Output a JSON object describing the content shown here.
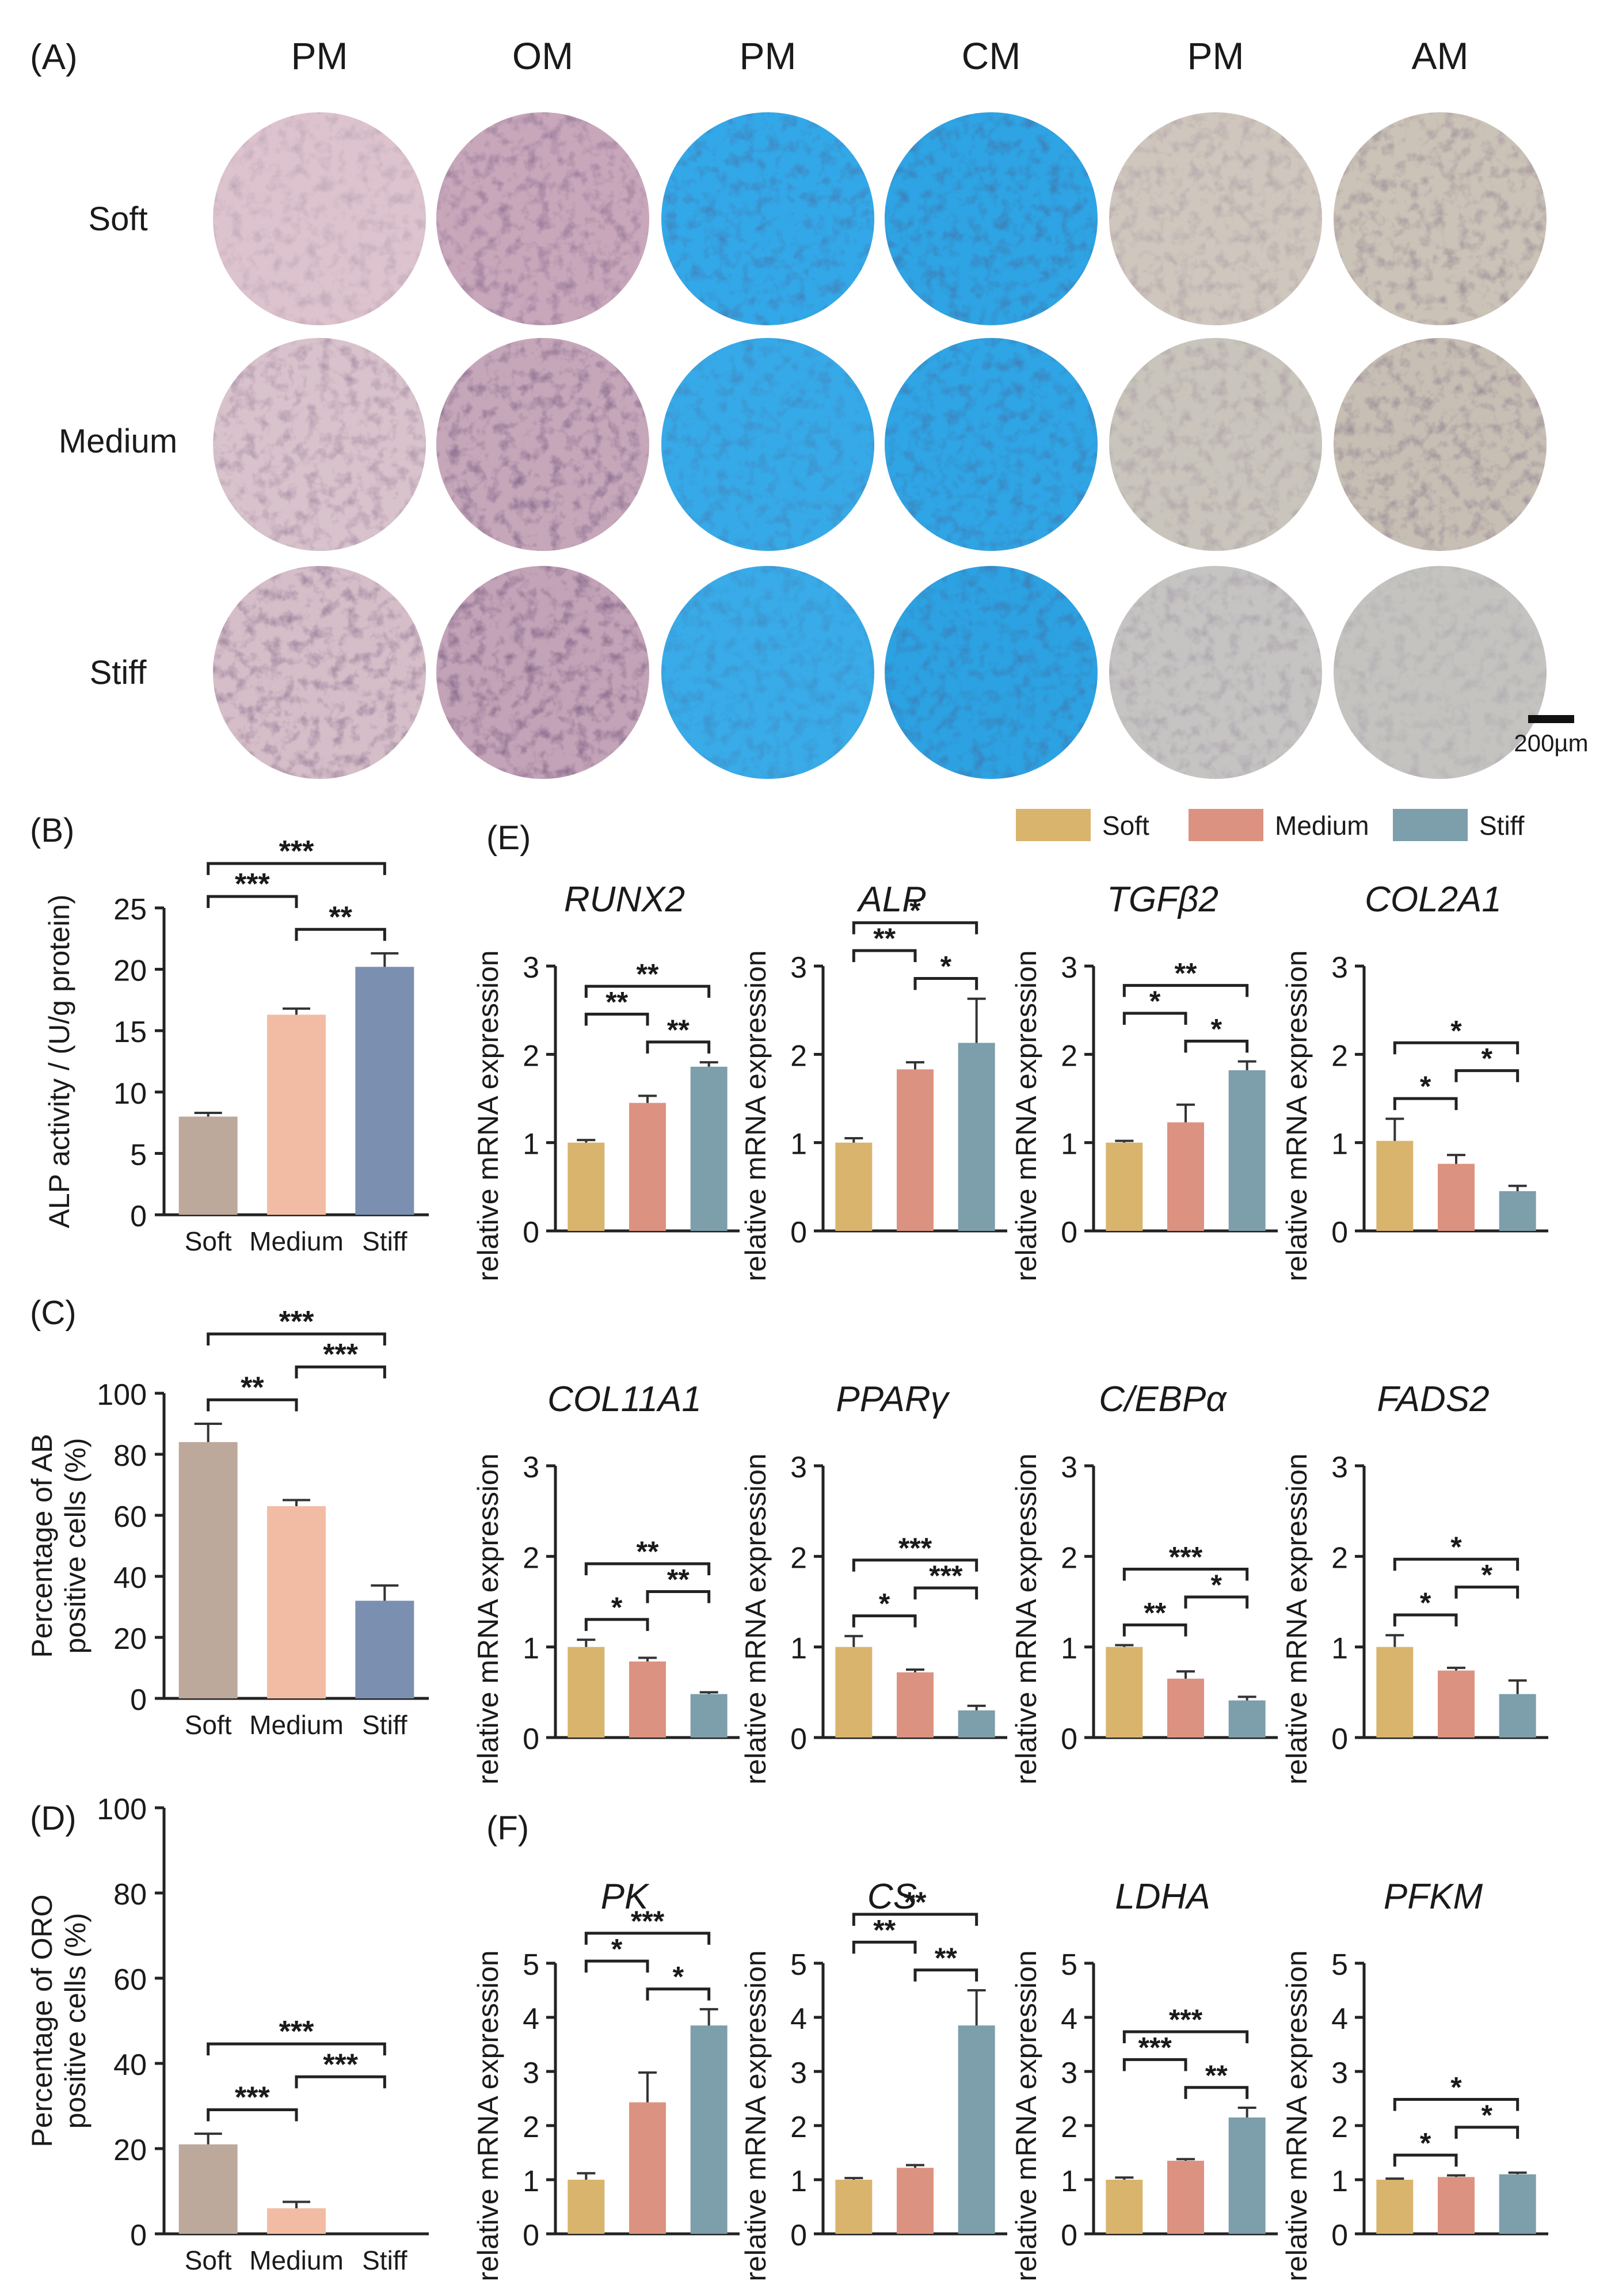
{
  "colors": {
    "soft": "#d9b46d",
    "medium": "#dc9280",
    "stiff": "#7d9eab",
    "soft_b": "#bda89c",
    "medium_b": "#f2bca4",
    "stiff_b": "#7b8fb0",
    "pm_purple": "#d9bcc8",
    "om_purple": "#c9a6bb",
    "alcian": "#35a9e6",
    "oro": "#c7c4bd"
  },
  "panel_a": {
    "label": "(A)",
    "columns": [
      "PM",
      "OM",
      "PM",
      "CM",
      "PM",
      "AM"
    ],
    "rows": [
      "Soft",
      "Medium",
      "Stiff"
    ],
    "scale_bar": "200µm"
  },
  "chart_data": [
    {
      "panel": "(B)",
      "type": "bar",
      "ylabel": "ALP activity / (U/g protein)",
      "categories": [
        "Soft",
        "Medium",
        "Stiff"
      ],
      "values": [
        8.0,
        16.3,
        20.2
      ],
      "errors": [
        0.3,
        0.5,
        1.1
      ],
      "ylim": [
        0,
        25
      ],
      "yticks": [
        "0",
        "5",
        "10",
        "15",
        "20",
        "25"
      ],
      "sig": [
        {
          "a": 0,
          "b": 2,
          "label": "***"
        },
        {
          "a": 1,
          "b": 2,
          "label": "**"
        },
        {
          "a": 0,
          "b": 1,
          "label": "***"
        }
      ]
    },
    {
      "panel": "(C)",
      "type": "bar",
      "ylabel": [
        "Percentage of AB",
        "positive cells (%)"
      ],
      "categories": [
        "Soft",
        "Medium",
        "Stiff"
      ],
      "values": [
        84,
        63,
        32
      ],
      "errors": [
        6,
        2,
        5
      ],
      "ylim": [
        0,
        100
      ],
      "yticks": [
        "0",
        "20",
        "40",
        "60",
        "80",
        "100"
      ],
      "sig": [
        {
          "a": 0,
          "b": 2,
          "label": "***"
        },
        {
          "a": 0,
          "b": 1,
          "label": "**"
        },
        {
          "a": 1,
          "b": 2,
          "label": "***"
        }
      ]
    },
    {
      "panel": "(D)",
      "type": "bar",
      "ylabel": [
        "Percentage of ORO",
        "positive cells (%)"
      ],
      "categories": [
        "Soft",
        "Medium",
        "Stiff"
      ],
      "values": [
        21,
        6,
        0
      ],
      "errors": [
        2.5,
        1.5,
        0
      ],
      "ylim": [
        0,
        100
      ],
      "yticks": [
        "0",
        "20",
        "40",
        "60",
        "80",
        "100"
      ],
      "sig": [
        {
          "a": 0,
          "b": 2,
          "label": "***"
        },
        {
          "a": 0,
          "b": 1,
          "label": "***"
        },
        {
          "a": 1,
          "b": 2,
          "label": "***"
        }
      ]
    },
    {
      "panel": "(E)",
      "type": "bar",
      "legend": [
        "Soft",
        "Medium",
        "Stiff"
      ],
      "ylabel": "relative mRNA expression",
      "genes": [
        {
          "name": "RUNX2",
          "values": [
            1.0,
            1.45,
            1.86
          ],
          "errors": [
            0.03,
            0.08,
            0.05
          ],
          "ylim": [
            0,
            3
          ],
          "sig": [
            {
              "a": 0,
              "b": 2,
              "label": "**"
            },
            {
              "a": 1,
              "b": 2,
              "label": "**"
            },
            {
              "a": 0,
              "b": 1,
              "label": "**"
            }
          ]
        },
        {
          "name": "ALP",
          "values": [
            1.0,
            1.83,
            2.13
          ],
          "errors": [
            0.05,
            0.08,
            0.5
          ],
          "ylim": [
            0,
            3
          ],
          "sig": [
            {
              "a": 0,
              "b": 2,
              "label": "*"
            },
            {
              "a": 1,
              "b": 2,
              "label": "*"
            },
            {
              "a": 0,
              "b": 1,
              "label": "**"
            }
          ]
        },
        {
          "name": "TGFβ2",
          "values": [
            1.0,
            1.23,
            1.82
          ],
          "errors": [
            0.02,
            0.2,
            0.1
          ],
          "ylim": [
            0,
            3
          ],
          "sig": [
            {
              "a": 0,
              "b": 2,
              "label": "**"
            },
            {
              "a": 1,
              "b": 2,
              "label": "*"
            },
            {
              "a": 0,
              "b": 1,
              "label": "*"
            }
          ]
        },
        {
          "name": "COL2A1",
          "values": [
            1.02,
            0.76,
            0.45
          ],
          "errors": [
            0.25,
            0.1,
            0.06
          ],
          "ylim": [
            0,
            3
          ],
          "sig": [
            {
              "a": 0,
              "b": 2,
              "label": "*"
            },
            {
              "a": 0,
              "b": 1,
              "label": "*"
            },
            {
              "a": 1,
              "b": 2,
              "label": "*"
            }
          ]
        },
        {
          "name": "COL11A1",
          "values": [
            1.0,
            0.84,
            0.48
          ],
          "errors": [
            0.08,
            0.04,
            0.02
          ],
          "ylim": [
            0,
            3
          ],
          "sig": [
            {
              "a": 0,
              "b": 2,
              "label": "**"
            },
            {
              "a": 0,
              "b": 1,
              "label": "*"
            },
            {
              "a": 1,
              "b": 2,
              "label": "**"
            }
          ]
        },
        {
          "name": "PPARγ",
          "values": [
            1.0,
            0.72,
            0.3
          ],
          "errors": [
            0.12,
            0.03,
            0.05
          ],
          "ylim": [
            0,
            3
          ],
          "sig": [
            {
              "a": 0,
              "b": 2,
              "label": "***"
            },
            {
              "a": 0,
              "b": 1,
              "label": "*"
            },
            {
              "a": 1,
              "b": 2,
              "label": "***"
            }
          ]
        },
        {
          "name": "C/EBPα",
          "values": [
            1.0,
            0.65,
            0.41
          ],
          "errors": [
            0.02,
            0.08,
            0.04
          ],
          "ylim": [
            0,
            3
          ],
          "sig": [
            {
              "a": 0,
              "b": 2,
              "label": "***"
            },
            {
              "a": 0,
              "b": 1,
              "label": "**"
            },
            {
              "a": 1,
              "b": 2,
              "label": "*"
            }
          ]
        },
        {
          "name": "FADS2",
          "values": [
            1.0,
            0.74,
            0.48
          ],
          "errors": [
            0.13,
            0.03,
            0.15
          ],
          "ylim": [
            0,
            3
          ],
          "sig": [
            {
              "a": 0,
              "b": 2,
              "label": "*"
            },
            {
              "a": 0,
              "b": 1,
              "label": "*"
            },
            {
              "a": 1,
              "b": 2,
              "label": "*"
            }
          ]
        }
      ]
    },
    {
      "panel": "(F)",
      "type": "bar",
      "ylabel": "relative mRNA expression",
      "genes": [
        {
          "name": "PK",
          "values": [
            1.0,
            2.43,
            3.85
          ],
          "errors": [
            0.12,
            0.55,
            0.3
          ],
          "ylim": [
            0,
            5
          ],
          "sig": [
            {
              "a": 0,
              "b": 2,
              "label": "***"
            },
            {
              "a": 1,
              "b": 2,
              "label": "*"
            },
            {
              "a": 0,
              "b": 1,
              "label": "*"
            }
          ]
        },
        {
          "name": "CS",
          "values": [
            1.0,
            1.22,
            3.85
          ],
          "errors": [
            0.03,
            0.05,
            0.65
          ],
          "ylim": [
            0,
            5
          ],
          "sig": [
            {
              "a": 0,
              "b": 2,
              "label": "**"
            },
            {
              "a": 1,
              "b": 2,
              "label": "**"
            },
            {
              "a": 0,
              "b": 1,
              "label": "**"
            }
          ]
        },
        {
          "name": "LDHA",
          "values": [
            1.0,
            1.35,
            2.15
          ],
          "errors": [
            0.04,
            0.03,
            0.18
          ],
          "ylim": [
            0,
            5
          ],
          "sig": [
            {
              "a": 0,
              "b": 2,
              "label": "***"
            },
            {
              "a": 1,
              "b": 2,
              "label": "**"
            },
            {
              "a": 0,
              "b": 1,
              "label": "***"
            }
          ]
        },
        {
          "name": "PFKM",
          "values": [
            1.0,
            1.05,
            1.1
          ],
          "errors": [
            0.02,
            0.03,
            0.03
          ],
          "ylim": [
            0,
            5
          ],
          "sig": [
            {
              "a": 0,
              "b": 2,
              "label": "*"
            },
            {
              "a": 0,
              "b": 1,
              "label": "*"
            },
            {
              "a": 1,
              "b": 2,
              "label": "*"
            }
          ]
        }
      ]
    }
  ]
}
